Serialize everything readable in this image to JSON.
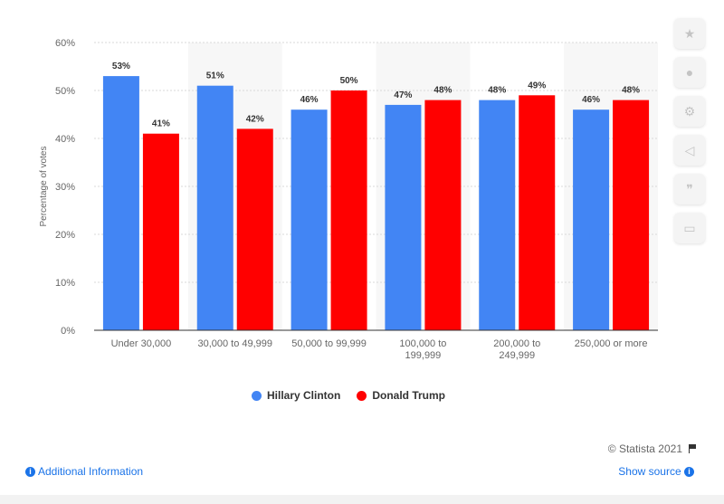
{
  "chart_data": {
    "type": "bar",
    "categories": [
      "Under 30,000",
      "30,000 to 49,999",
      "50,000 to 99,999",
      "100,000 to\n199,999",
      "200,000 to\n249,999",
      "250,000 or more"
    ],
    "series": [
      {
        "name": "Hillary Clinton",
        "color": "#4285f4",
        "values": [
          53,
          51,
          46,
          47,
          48,
          46
        ]
      },
      {
        "name": "Donald Trump",
        "color": "#ff0000",
        "values": [
          41,
          42,
          50,
          48,
          49,
          48
        ]
      }
    ],
    "ylabel": "Percentage of votes",
    "ylim": [
      0,
      60
    ],
    "yticks": [
      0,
      10,
      20,
      30,
      40,
      50,
      60
    ],
    "ytick_labels": [
      "0%",
      "10%",
      "20%",
      "30%",
      "40%",
      "50%",
      "60%"
    ],
    "value_suffix": "%",
    "grid": true,
    "legend_position": "bottom-center"
  },
  "legend": {
    "items": [
      {
        "label": "Hillary Clinton",
        "color": "#4285f4"
      },
      {
        "label": "Donald Trump",
        "color": "#ff0000"
      }
    ]
  },
  "footer": {
    "additional_info": "Additional Information",
    "show_source": "Show source",
    "credit": "© Statista 2021"
  },
  "tools": {
    "icons": [
      "star-icon",
      "bell-icon",
      "gear-icon",
      "share-icon",
      "quote-icon",
      "print-icon"
    ]
  }
}
